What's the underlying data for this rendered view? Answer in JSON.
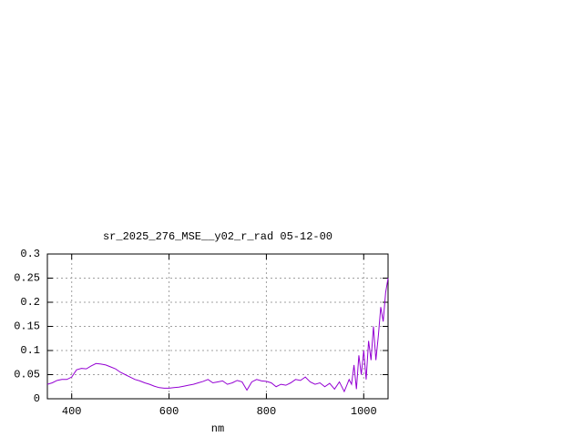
{
  "chart_data": {
    "type": "line",
    "title": "sr_2025_276_MSE__y02_r_rad 05-12-00",
    "x_label": "nm",
    "x": [
      350,
      360,
      370,
      380,
      390,
      400,
      410,
      420,
      430,
      440,
      450,
      460,
      470,
      480,
      490,
      500,
      510,
      520,
      530,
      540,
      550,
      560,
      570,
      580,
      590,
      600,
      610,
      620,
      630,
      640,
      650,
      660,
      670,
      680,
      690,
      700,
      710,
      720,
      730,
      740,
      750,
      760,
      770,
      780,
      790,
      800,
      810,
      820,
      830,
      840,
      850,
      860,
      870,
      880,
      890,
      900,
      910,
      920,
      930,
      940,
      950,
      960,
      970,
      975,
      980,
      985,
      990,
      995,
      1000,
      1005,
      1010,
      1015,
      1020,
      1025,
      1030,
      1035,
      1040,
      1045,
      1050
    ],
    "series": [
      {
        "name": "sr_2025_276_MSE__y02_r_rad",
        "color": "#9400d3",
        "values": [
          0.03,
          0.033,
          0.038,
          0.04,
          0.04,
          0.045,
          0.06,
          0.063,
          0.062,
          0.068,
          0.073,
          0.072,
          0.07,
          0.066,
          0.062,
          0.055,
          0.05,
          0.045,
          0.04,
          0.037,
          0.033,
          0.03,
          0.026,
          0.023,
          0.022,
          0.022,
          0.023,
          0.024,
          0.026,
          0.028,
          0.03,
          0.033,
          0.036,
          0.04,
          0.033,
          0.035,
          0.037,
          0.03,
          0.033,
          0.038,
          0.035,
          0.018,
          0.035,
          0.04,
          0.037,
          0.036,
          0.033,
          0.025,
          0.03,
          0.028,
          0.033,
          0.04,
          0.038,
          0.045,
          0.035,
          0.03,
          0.033,
          0.025,
          0.032,
          0.02,
          0.035,
          0.015,
          0.04,
          0.03,
          0.07,
          0.02,
          0.09,
          0.05,
          0.1,
          0.04,
          0.12,
          0.08,
          0.15,
          0.08,
          0.13,
          0.19,
          0.16,
          0.22,
          0.25
        ]
      }
    ],
    "xlim": [
      350,
      1050
    ],
    "xticks": [
      400,
      600,
      800,
      1000
    ],
    "ylim": [
      0,
      0.3
    ],
    "yticks": [
      0,
      0.05,
      0.1,
      0.15,
      0.2,
      0.25,
      0.3
    ],
    "grid": true
  }
}
